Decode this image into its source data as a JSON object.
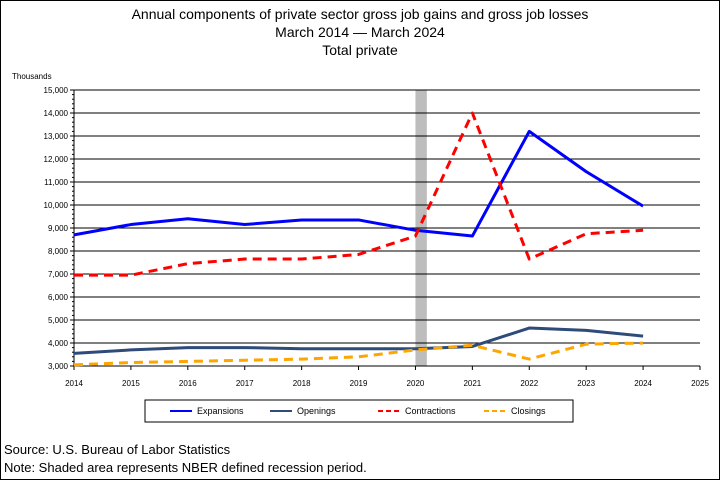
{
  "chart_data": {
    "type": "line",
    "title": "Annual components of private sector gross job gains and gross job losses",
    "subtitle": "March 2014 — March 2024",
    "subtitle2": "Total private",
    "ylabel": "Thousands",
    "source": "Source: U.S. Bureau of Labor Statistics",
    "note": "Note: Shaded area represents NBER defined recession period.",
    "x": [
      2014,
      2015,
      2016,
      2017,
      2018,
      2019,
      2020,
      2021,
      2022,
      2023,
      2024
    ],
    "xlim": [
      2014,
      2025
    ],
    "xticks": [
      "2014",
      "2015",
      "2016",
      "2017",
      "2018",
      "2019",
      "2020",
      "2021",
      "2022",
      "2023",
      "2024",
      "2025"
    ],
    "ylim": [
      3000,
      15000
    ],
    "yticks": [
      "3,000",
      "4,000",
      "5,000",
      "6,000",
      "7,000",
      "8,000",
      "9,000",
      "10,000",
      "11,000",
      "12,000",
      "13,000",
      "14,000",
      "15,000"
    ],
    "grid": true,
    "recession": [
      2020.0,
      2020.2
    ],
    "legend_position": "bottom",
    "series": [
      {
        "name": "Expansions",
        "color": "#0000ff",
        "dash": "solid",
        "values": [
          8700,
          9150,
          9400,
          9150,
          9350,
          9350,
          8900,
          8650,
          13200,
          11450,
          9950
        ]
      },
      {
        "name": "Openings",
        "color": "#2e4b7a",
        "dash": "solid",
        "values": [
          3550,
          3700,
          3800,
          3800,
          3750,
          3750,
          3750,
          3850,
          4650,
          4550,
          4300
        ]
      },
      {
        "name": "Contractions",
        "color": "#ff0000",
        "dash": "dashed",
        "values": [
          6950,
          6950,
          7450,
          7650,
          7650,
          7850,
          8650,
          14000,
          7650,
          8750,
          8900
        ]
      },
      {
        "name": "Closings",
        "color": "#ffa500",
        "dash": "dashed",
        "values": [
          3050,
          3150,
          3200,
          3250,
          3300,
          3400,
          3700,
          3900,
          3300,
          3950,
          4000
        ]
      }
    ]
  }
}
